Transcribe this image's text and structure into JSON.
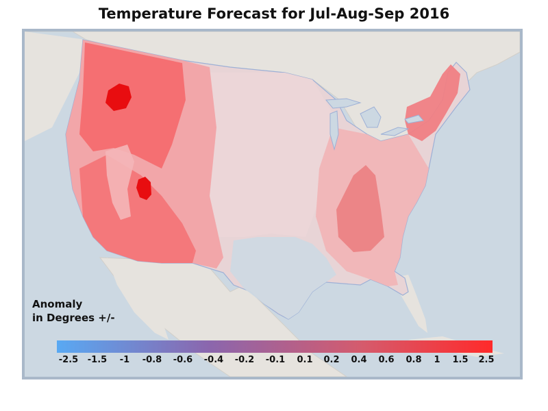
{
  "title": "Temperature Forecast for Jul-Aug-Sep 2016",
  "legend": {
    "label_line1": "Anomaly",
    "label_line2": "in Degrees +/-",
    "ticks": [
      "-2.5",
      "-1.5",
      "-1",
      "-0.8",
      "-0.6",
      "-0.4",
      "-0.2",
      "-0.1",
      "0.1",
      "0.2",
      "0.4",
      "0.6",
      "0.8",
      "1",
      "1.5",
      "2.5"
    ],
    "color_low": "#59a9f3",
    "color_high": "#ff2a2a"
  },
  "colors": {
    "water": "#ccd8e2",
    "land": "#e6e3de",
    "border": "#a9b8c9"
  }
}
